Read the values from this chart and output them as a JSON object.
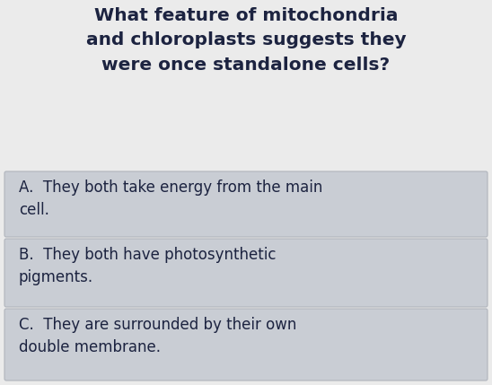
{
  "question_lines": [
    "What feature of mitochondria",
    "and chloroplasts suggests they",
    "were once standalone cells?"
  ],
  "options": [
    {
      "label": "A.",
      "text": "They both take energy from the main\ncell."
    },
    {
      "label": "B.",
      "text": "They both have photosynthetic\npigments."
    },
    {
      "label": "C.",
      "text": "They are surrounded by their own\ndouble membrane."
    }
  ],
  "background_color": "#ebebeb",
  "option_box_color": "#c9cdd4",
  "option_box_border_color": "#b0b5bc",
  "question_color": "#1c2340",
  "option_text_color": "#1c2340",
  "question_fontsize": 14.5,
  "option_fontsize": 12.0,
  "fig_width": 5.48,
  "fig_height": 4.29,
  "dpi": 100
}
